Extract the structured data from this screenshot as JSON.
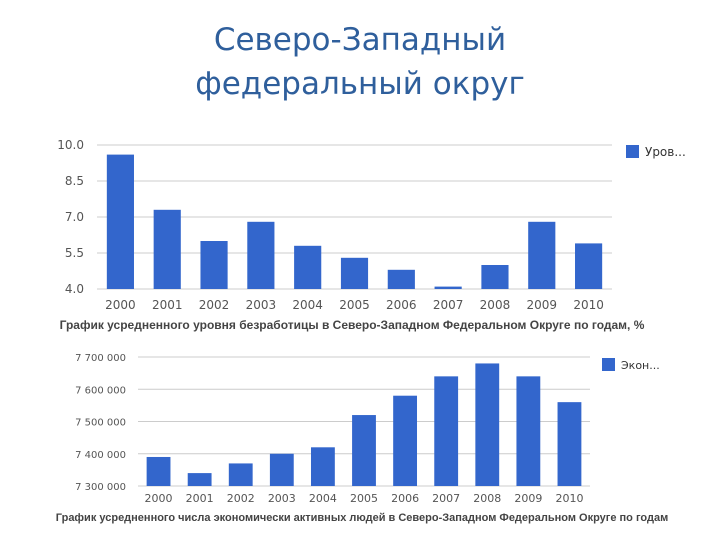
{
  "title": {
    "line1": "Северо-Западный",
    "line2": "федеральный округ"
  },
  "colors": {
    "bar": "#3366cc",
    "grid": "#cccccc",
    "title": "#2f5f9c"
  },
  "chart_data": [
    {
      "type": "bar",
      "title": "График усредненного уровня безработицы в Северо-Западном Федеральном Округе по годам, %",
      "categories": [
        "2000",
        "2001",
        "2002",
        "2003",
        "2004",
        "2005",
        "2006",
        "2007",
        "2008",
        "2009",
        "2010"
      ],
      "tick_labels": [
        "2000",
        "2001",
        "2002",
        "2003",
        "2004",
        "2005",
        "2006",
        "2007",
        "2008",
        "2009",
        "2010"
      ],
      "y_ticks": [
        4.0,
        5.5,
        7.0,
        8.5,
        10.0
      ],
      "y_tick_labels": [
        "4.0",
        "5.5",
        "7.0",
        "8.5",
        "10.0"
      ],
      "ylim": [
        4.0,
        10.0
      ],
      "series": [
        {
          "name": "Уров...",
          "values": [
            9.6,
            7.3,
            6.0,
            6.8,
            5.8,
            5.3,
            4.8,
            4.1,
            5.0,
            6.8,
            5.9
          ]
        }
      ],
      "legend_position": "top-right",
      "grid": true
    },
    {
      "type": "bar",
      "title": "График усредненного числа экономически активных людей в Северо-Западном Федеральном Округе по годам",
      "categories": [
        "2000",
        "2001",
        "2002",
        "2003",
        "2004",
        "2005",
        "2006",
        "2007",
        "2008",
        "2009",
        "2010"
      ],
      "tick_labels": [
        "2000",
        "2001",
        "2002",
        "2003",
        "2004",
        "2005",
        "2006",
        "2007",
        "2008",
        "2009",
        "2010"
      ],
      "y_ticks": [
        7300000,
        7400000,
        7500000,
        7600000,
        7700000
      ],
      "y_tick_labels": [
        "7 300 000",
        "7 400 000",
        "7 500 000",
        "7 600 000",
        "7 700 000"
      ],
      "ylim": [
        7300000,
        7700000
      ],
      "series": [
        {
          "name": "Экон...",
          "values": [
            7390000,
            7340000,
            7370000,
            7400000,
            7420000,
            7520000,
            7580000,
            7640000,
            7680000,
            7640000,
            7560000
          ]
        }
      ],
      "legend_position": "top-right",
      "grid": true
    }
  ]
}
